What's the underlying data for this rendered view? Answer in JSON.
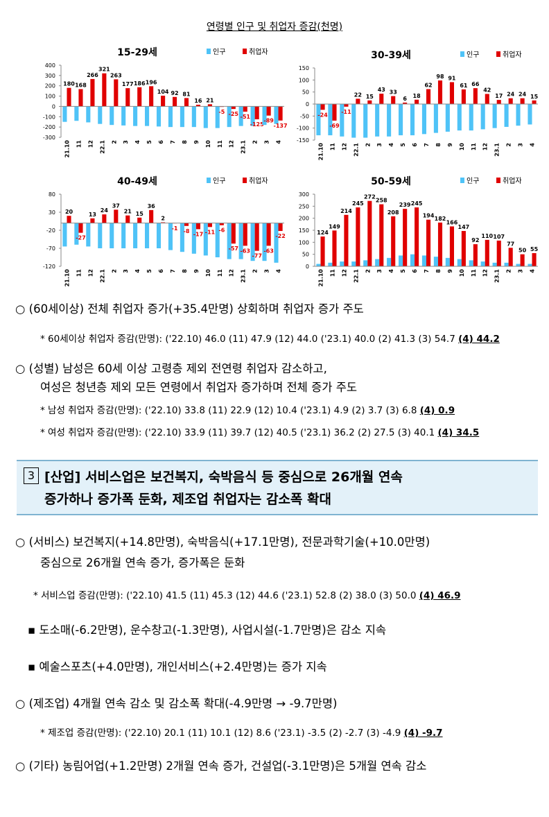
{
  "figure_title": "연령별 인구 및 취업자 증감(천명)",
  "chart_data": [
    {
      "type": "bar",
      "title": "15-29세",
      "categories": [
        "21.10",
        "11",
        "12",
        "22.1",
        "2",
        "3",
        "4",
        "5",
        "6",
        "7",
        "8",
        "9",
        "10",
        "11",
        "12",
        "23.1",
        "2",
        "3",
        "4"
      ],
      "series": [
        {
          "name": "인구",
          "color": "#4fc3f7",
          "values": [
            -150,
            -140,
            -155,
            -170,
            -180,
            -185,
            -190,
            -190,
            -195,
            -200,
            -200,
            -200,
            -210,
            -210,
            -200,
            -190,
            -190,
            -180,
            -170
          ]
        },
        {
          "name": "취업자",
          "color": "#e00000",
          "values": [
            180,
            168,
            266,
            321,
            263,
            177,
            186,
            196,
            104,
            92,
            81,
            16,
            21,
            -5,
            -25,
            -51,
            -125,
            -89,
            -137
          ]
        }
      ],
      "ylim": [
        -300,
        400
      ],
      "yticks": [
        -300,
        -200,
        -100,
        0,
        100,
        200,
        300,
        400
      ]
    },
    {
      "type": "bar",
      "title": "30-39세",
      "categories": [
        "21.10",
        "11",
        "12",
        "22.1",
        "2",
        "3",
        "4",
        "5",
        "6",
        "7",
        "8",
        "9",
        "10",
        "11",
        "12",
        "23.1",
        "2",
        "3",
        "4"
      ],
      "series": [
        {
          "name": "인구",
          "color": "#4fc3f7",
          "values": [
            -130,
            -130,
            -135,
            -140,
            -140,
            -135,
            -135,
            -130,
            -130,
            -125,
            -120,
            -115,
            -110,
            -110,
            -105,
            -100,
            -95,
            -90,
            -85
          ]
        },
        {
          "name": "취업자",
          "color": "#e00000",
          "values": [
            -24,
            -69,
            -11,
            22,
            15,
            43,
            33,
            6,
            18,
            62,
            98,
            91,
            61,
            66,
            42,
            17,
            24,
            24,
            15
          ]
        }
      ],
      "ylim": [
        -150,
        150
      ],
      "yticks": [
        -150,
        -100,
        -50,
        0,
        50,
        100,
        150
      ]
    },
    {
      "type": "bar",
      "title": "40-49세",
      "categories": [
        "21.10",
        "11",
        "12",
        "22.1",
        "2",
        "3",
        "4",
        "5",
        "6",
        "7",
        "8",
        "9",
        "10",
        "11",
        "12",
        "23.1",
        "2",
        "3",
        "4"
      ],
      "series": [
        {
          "name": "인구",
          "color": "#4fc3f7",
          "values": [
            -65,
            -60,
            -65,
            -70,
            -70,
            -70,
            -70,
            -70,
            -70,
            -75,
            -80,
            -85,
            -90,
            -95,
            -100,
            -100,
            -105,
            -105,
            -110
          ]
        },
        {
          "name": "취업자",
          "color": "#e00000",
          "values": [
            20,
            -27,
            13,
            24,
            37,
            21,
            15,
            36,
            2,
            -1,
            -8,
            -17,
            -11,
            -6,
            -57,
            -63,
            -77,
            -63,
            -22
          ]
        }
      ],
      "ylim": [
        -120,
        80
      ],
      "yticks": [
        -120,
        -70,
        -20,
        30,
        80
      ]
    },
    {
      "type": "bar",
      "title": "50-59세",
      "categories": [
        "21.10",
        "11",
        "12",
        "22.1",
        "2",
        "3",
        "4",
        "5",
        "6",
        "7",
        "8",
        "9",
        "10",
        "11",
        "12",
        "23.1",
        "2",
        "3",
        "4"
      ],
      "series": [
        {
          "name": "인구",
          "color": "#4fc3f7",
          "values": [
            10,
            15,
            20,
            20,
            25,
            30,
            35,
            45,
            50,
            45,
            40,
            35,
            30,
            25,
            20,
            15,
            15,
            10,
            10
          ]
        },
        {
          "name": "취업자",
          "color": "#e00000",
          "values": [
            124,
            149,
            214,
            245,
            272,
            258,
            208,
            239,
            245,
            194,
            182,
            166,
            147,
            92,
            110,
            107,
            77,
            50,
            55
          ]
        }
      ],
      "ylim": [
        0,
        300
      ],
      "yticks": [
        0,
        50,
        100,
        150,
        200,
        250,
        300
      ]
    }
  ],
  "items": [
    {
      "text": "○  (60세이상) 전체 취업자 증가(+35.4만명) 상회하며 취업자 증가 주도"
    },
    {
      "text": "*  60세이상 취업자 증감(만명): ('22.10) 46.0 (11) 47.9 (12) 44.0 ('23.1) 40.0 (2) 41.3 (3) 54.7 ",
      "emph": "(4) 44.2"
    },
    {
      "lines": [
        "○  (성별) 남성은 60세 이상 고령층 제외 전연령 취업자 감소하고,",
        "여성은 청년층 제외 모든 연령에서 취업자 증가하며 전체 증가 주도"
      ]
    },
    {
      "text": "*  남성 취업자 증감(만명): ('22.10) 33.8 (11) 22.9 (12) 10.4 ('23.1) 4.9 (2) 3.7 (3) 6.8 ",
      "emph": "(4) 0.9"
    },
    {
      "text": "*  여성 취업자 증감(만명): ('22.10) 33.9 (11) 39.7 (12) 40.5 ('23.1) 36.2 (2) 27.5 (3) 40.1 ",
      "emph": "(4) 34.5"
    },
    {
      "number": "3",
      "lines": [
        "[산업] 서비스업은 보건복지, 숙박음식 등 중심으로 26개월 연속",
        "증가하나 증가폭 둔화, 제조업 취업자는 감소폭 확대"
      ]
    },
    {
      "lines": [
        "○  (서비스) 보건복지(+14.8만명), 숙박음식(+17.1만명), 전문과학기술(+10.0만명)",
        "중심으로 26개월 연속 증가, 증가폭은 둔화"
      ]
    },
    {
      "text": "*  서비스업 증감(만명): ('22.10) 41.5 (11) 45.3 (12) 44.6 ('23.1) 52.8 (2) 38.0 (3) 50.0 ",
      "emph": "(4) 46.9"
    },
    {
      "text": "▪  도소매(-6.2만명), 운수창고(-1.3만명), 사업시설(-1.7만명)은 감소 지속"
    },
    {
      "text": "▪  예술스포츠(+4.0만명), 개인서비스(+2.4만명)는 증가 지속"
    },
    {
      "text": "○  (제조업) 4개월 연속 감소 및 감소폭 확대(-4.9만명 → -9.7만명)"
    },
    {
      "text": "*  제조업 증감(만명): ('22.10) 20.1 (11) 10.1 (12) 8.6 ('23.1) -3.5 (2) -2.7 (3) -4.9 ",
      "emph": "(4) -9.7"
    },
    {
      "text": "○  (기타) 농림어업(+1.2만명) 2개월 연속 증가, 건설업(-3.1만명)은 5개월 연속 감소"
    }
  ]
}
